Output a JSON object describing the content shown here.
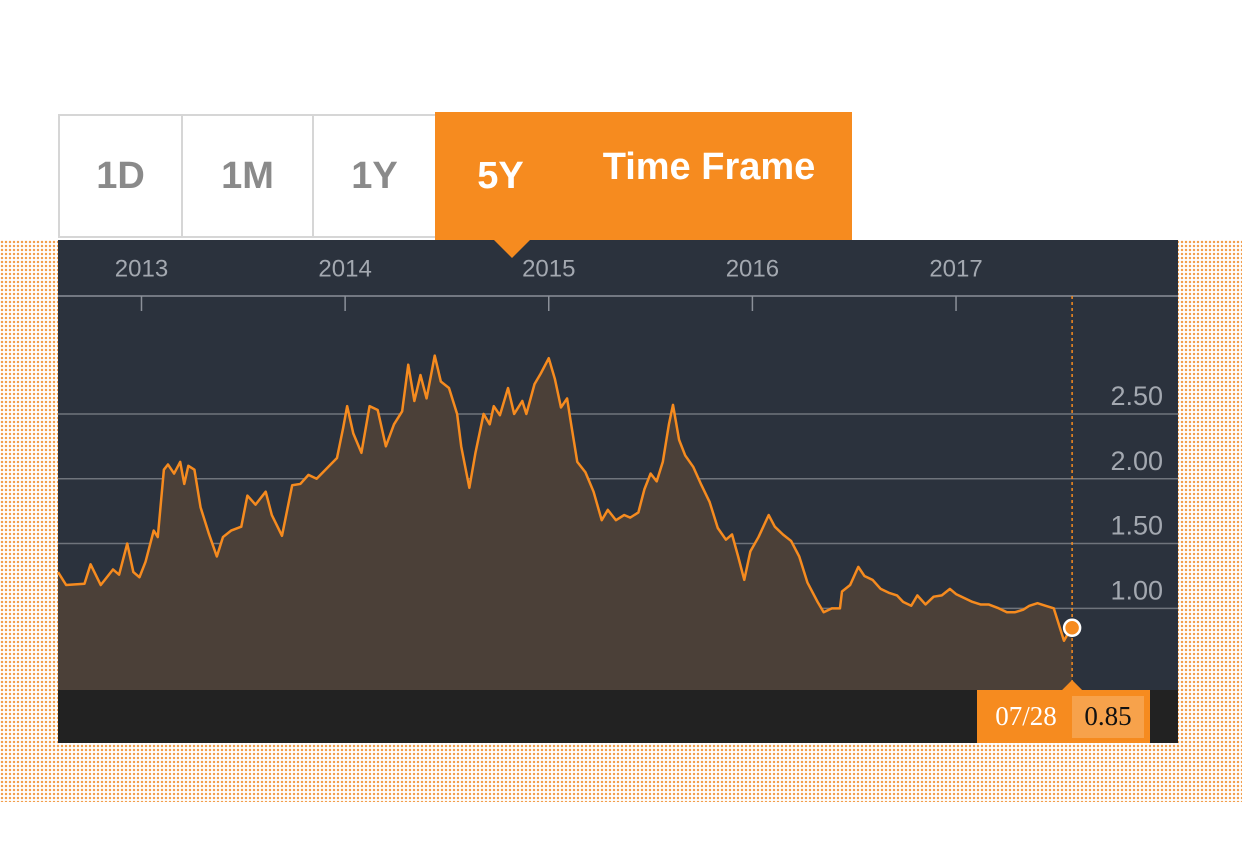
{
  "time_frame": {
    "options": [
      "1D",
      "1M",
      "1Y",
      "5Y"
    ],
    "label": "Time Frame"
  },
  "chart_data": {
    "type": "area",
    "color": "#f68b1f",
    "fill_color": "#4b4038",
    "background": "#2b323d",
    "xlim": [
      2012.59,
      2018.09
    ],
    "xticks": [
      2013,
      2014,
      2015,
      2016,
      2017
    ],
    "ylim": [
      0.37,
      3.41
    ],
    "yticks": [
      {
        "value": 1,
        "label": "1.00"
      },
      {
        "value": 1.5,
        "label": "1.50"
      },
      {
        "value": 2,
        "label": "2.00"
      },
      {
        "value": 2.5,
        "label": "2.50"
      }
    ],
    "grid": true,
    "x": [
      2012.59,
      2012.63,
      2012.72,
      2012.75,
      2012.8,
      2012.86,
      2012.89,
      2012.93,
      2012.96,
      2012.99,
      2013.02,
      2013.06,
      2013.08,
      2013.11,
      2013.13,
      2013.16,
      2013.19,
      2013.21,
      2013.23,
      2013.26,
      2013.29,
      2013.33,
      2013.37,
      2013.4,
      2013.44,
      2013.49,
      2013.52,
      2013.56,
      2013.61,
      2013.64,
      2013.69,
      2013.74,
      2013.78,
      2013.82,
      2013.86,
      2013.91,
      2013.96,
      2013.99,
      2014.01,
      2014.04,
      2014.08,
      2014.12,
      2014.16,
      2014.2,
      2014.24,
      2014.28,
      2014.31,
      2014.34,
      2014.37,
      2014.4,
      2014.44,
      2014.47,
      2014.51,
      2014.55,
      2014.57,
      2014.61,
      2014.64,
      2014.68,
      2014.71,
      2014.73,
      2014.76,
      2014.8,
      2014.83,
      2014.87,
      2014.89,
      2014.93,
      2014.96,
      2015.0,
      2015.03,
      2015.06,
      2015.09,
      2015.11,
      2015.14,
      2015.18,
      2015.22,
      2015.26,
      2015.29,
      2015.33,
      2015.37,
      2015.4,
      2015.44,
      2015.47,
      2015.5,
      2015.53,
      2015.56,
      2015.59,
      2015.61,
      2015.64,
      2015.67,
      2015.71,
      2015.75,
      2015.79,
      2015.83,
      2015.87,
      2015.9,
      2015.93,
      2015.96,
      2015.99,
      2016.03,
      2016.08,
      2016.11,
      2016.15,
      2016.19,
      2016.23,
      2016.27,
      2016.32,
      2016.35,
      2016.39,
      2016.43,
      2016.44,
      2016.48,
      2016.52,
      2016.55,
      2016.59,
      2016.63,
      2016.67,
      2016.71,
      2016.74,
      2016.78,
      2016.81,
      2016.85,
      2016.89,
      2016.93,
      2016.97,
      2017.0,
      2017.04,
      2017.08,
      2017.12,
      2017.16,
      2017.21,
      2017.25,
      2017.29,
      2017.33,
      2017.36,
      2017.4,
      2017.44,
      2017.48,
      2017.5,
      2017.53,
      2017.555,
      2017.57
    ],
    "values": [
      1.28,
      1.18,
      1.19,
      1.34,
      1.18,
      1.3,
      1.26,
      1.5,
      1.28,
      1.24,
      1.36,
      1.6,
      1.55,
      2.07,
      2.11,
      2.04,
      2.13,
      1.96,
      2.1,
      2.07,
      1.78,
      1.58,
      1.4,
      1.55,
      1.6,
      1.63,
      1.87,
      1.8,
      1.9,
      1.72,
      1.56,
      1.95,
      1.96,
      2.03,
      2.0,
      2.08,
      2.16,
      2.39,
      2.56,
      2.35,
      2.2,
      2.56,
      2.53,
      2.25,
      2.42,
      2.52,
      2.88,
      2.6,
      2.8,
      2.62,
      2.95,
      2.75,
      2.7,
      2.5,
      2.25,
      1.93,
      2.2,
      2.5,
      2.42,
      2.56,
      2.49,
      2.7,
      2.5,
      2.6,
      2.5,
      2.73,
      2.81,
      2.93,
      2.77,
      2.55,
      2.62,
      2.42,
      2.13,
      2.05,
      1.9,
      1.68,
      1.76,
      1.68,
      1.72,
      1.7,
      1.74,
      1.92,
      2.04,
      1.98,
      2.13,
      2.42,
      2.57,
      2.3,
      2.18,
      2.09,
      1.95,
      1.82,
      1.62,
      1.53,
      1.57,
      1.4,
      1.22,
      1.44,
      1.55,
      1.72,
      1.63,
      1.57,
      1.52,
      1.4,
      1.2,
      1.05,
      0.97,
      1.0,
      1.0,
      1.13,
      1.18,
      1.32,
      1.25,
      1.22,
      1.15,
      1.12,
      1.1,
      1.05,
      1.02,
      1.1,
      1.03,
      1.09,
      1.1,
      1.15,
      1.11,
      1.08,
      1.05,
      1.03,
      1.03,
      1.0,
      0.97,
      0.97,
      0.99,
      1.02,
      1.04,
      1.02,
      1.0,
      0.9,
      0.75,
      0.82,
      0.85
    ],
    "highlight": {
      "x": 2017.57,
      "value": 0.85,
      "date": "07/28"
    }
  }
}
